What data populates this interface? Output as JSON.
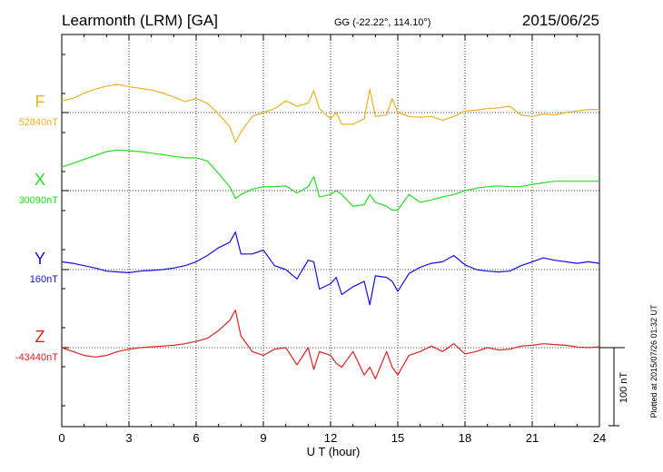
{
  "header": {
    "station": "Learmonth (LRM)  [GA]",
    "coords": "GG (-22.22°, 114.10°)",
    "date": "2015/06/25"
  },
  "footer": {
    "plotted_note": "Plotted at 2015/07/26 01:32 UT"
  },
  "scale_bar": {
    "label": "100 nT",
    "nT": 100
  },
  "chart_data": {
    "type": "line",
    "title": "Learmonth (LRM)  [GA]",
    "xlabel": "U T (hour)",
    "ylabel": "",
    "xlim": [
      0,
      24
    ],
    "xticks": [
      0,
      3,
      6,
      9,
      12,
      15,
      18,
      21,
      24
    ],
    "x_tick_labels": [
      "0",
      "3",
      "6",
      "9",
      "12",
      "15",
      "18",
      "21",
      "24"
    ],
    "grid": true,
    "y_units": "nT offset from baseline",
    "x": [
      0,
      0.5,
      1,
      1.5,
      2,
      2.5,
      3,
      3.5,
      4,
      4.5,
      5,
      5.5,
      6,
      6.5,
      7,
      7.5,
      7.75,
      8,
      8.5,
      9,
      9.5,
      10,
      10.5,
      11,
      11.25,
      11.5,
      12,
      12.25,
      12.5,
      13,
      13.5,
      13.75,
      14,
      14.5,
      14.75,
      15,
      15.5,
      16,
      16.5,
      17,
      17.5,
      18,
      18.5,
      19,
      19.5,
      20,
      20.5,
      21,
      21.5,
      22,
      22.5,
      23,
      23.5,
      24
    ],
    "series": [
      {
        "name": "F",
        "baseline_label": "52840nT",
        "color": "#f0b020",
        "values": [
          15,
          18,
          25,
          30,
          34,
          36,
          33,
          31,
          29,
          25,
          20,
          14,
          18,
          12,
          -2,
          -18,
          -38,
          -25,
          -5,
          0,
          5,
          15,
          8,
          12,
          28,
          5,
          -8,
          0,
          -15,
          -15,
          -8,
          30,
          -5,
          -3,
          18,
          0,
          -5,
          -6,
          -5,
          -10,
          -5,
          2,
          3,
          5,
          6,
          8,
          -3,
          -5,
          -2,
          -3,
          0,
          2,
          4,
          4
        ]
      },
      {
        "name": "X",
        "baseline_label": "30090nT",
        "color": "#22e022",
        "values": [
          30,
          35,
          40,
          45,
          50,
          52,
          51,
          50,
          48,
          46,
          44,
          42,
          42,
          38,
          22,
          5,
          -10,
          -5,
          2,
          5,
          5,
          6,
          -3,
          5,
          18,
          -8,
          -5,
          0,
          -5,
          -20,
          -18,
          -5,
          -15,
          -20,
          -25,
          -25,
          -5,
          -15,
          -12,
          -8,
          -5,
          0,
          3,
          5,
          6,
          5,
          5,
          8,
          10,
          12,
          12,
          12,
          12,
          12
        ]
      },
      {
        "name": "Y",
        "baseline_label": "160nT",
        "color": "#1010e0",
        "values": [
          10,
          8,
          5,
          2,
          -2,
          -3,
          -4,
          -2,
          -1,
          0,
          2,
          5,
          10,
          18,
          28,
          35,
          48,
          20,
          20,
          25,
          5,
          0,
          -12,
          12,
          10,
          -25,
          -18,
          -10,
          -32,
          -22,
          -15,
          -45,
          -8,
          -10,
          -15,
          -28,
          -5,
          3,
          8,
          10,
          18,
          6,
          0,
          -2,
          -3,
          -2,
          5,
          10,
          15,
          12,
          10,
          8,
          10,
          8
        ]
      },
      {
        "name": "Z",
        "baseline_label": "-43440nT",
        "color": "#e02020",
        "values": [
          0,
          -5,
          -10,
          -12,
          -10,
          -5,
          -2,
          0,
          1,
          2,
          3,
          5,
          8,
          12,
          22,
          35,
          48,
          15,
          -5,
          -10,
          -2,
          0,
          -22,
          0,
          -28,
          -5,
          -10,
          -20,
          -25,
          -5,
          -35,
          -25,
          -40,
          -5,
          -25,
          -35,
          -10,
          -5,
          2,
          -5,
          5,
          -8,
          -5,
          0,
          -3,
          -2,
          2,
          3,
          5,
          4,
          3,
          1,
          0,
          1
        ]
      }
    ]
  }
}
